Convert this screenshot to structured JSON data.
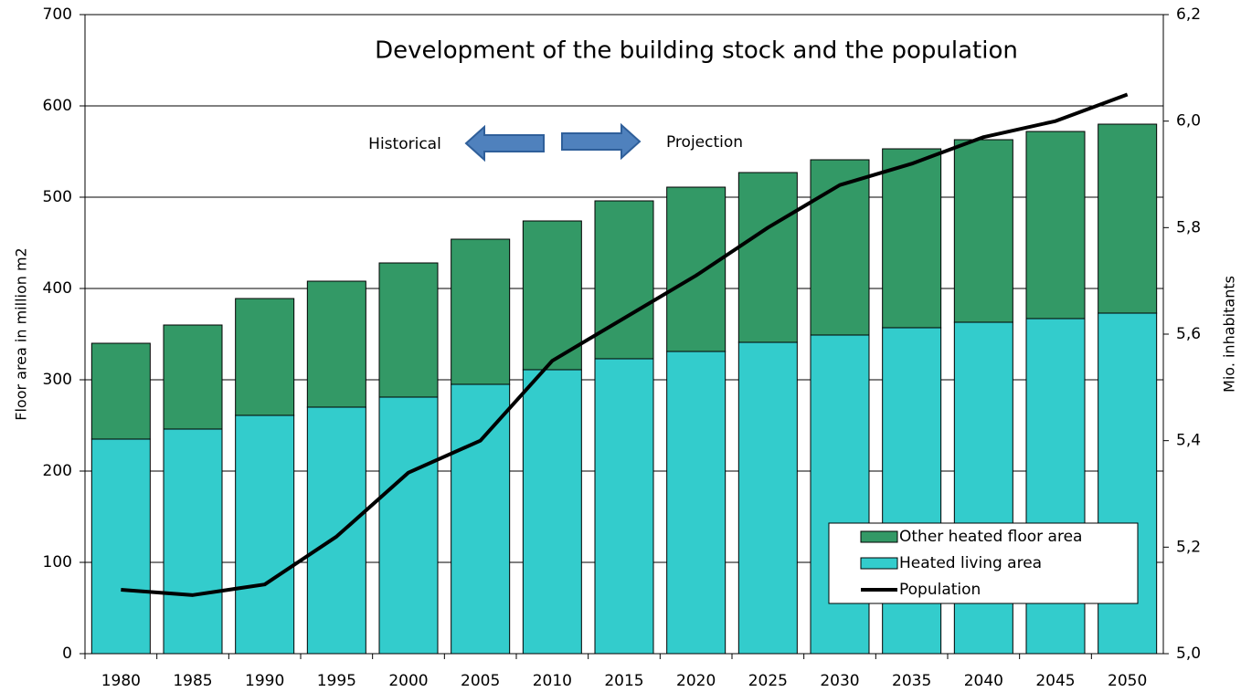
{
  "chart_data": {
    "type": "bar",
    "stacked": true,
    "title": "Development of the building stock and the population",
    "ylabel": "Floor area in million  m2",
    "y2label": "Mio. inhabitants",
    "annotations": [
      "Historical",
      "Projection"
    ],
    "categories": [
      "1980",
      "1985",
      "1990",
      "1995",
      "2000",
      "2005",
      "2010",
      "2015",
      "2020",
      "2025",
      "2030",
      "2035",
      "2040",
      "2045",
      "2050"
    ],
    "series": [
      {
        "name": "Heated living  area",
        "color": "#33cccc",
        "type": "bar",
        "values": [
          235,
          246,
          261,
          270,
          281,
          295,
          311,
          323,
          331,
          341,
          349,
          357,
          363,
          367,
          373
        ]
      },
      {
        "name": "Other heated floor area",
        "color": "#339966",
        "type": "bar",
        "values": [
          105,
          114,
          128,
          138,
          147,
          159,
          163,
          173,
          180,
          186,
          192,
          196,
          200,
          205,
          207
        ]
      },
      {
        "name": "Population",
        "color": "#000000",
        "type": "line",
        "axis": "y2",
        "values": [
          5.12,
          5.11,
          5.13,
          5.22,
          5.34,
          5.4,
          5.55,
          5.63,
          5.71,
          5.8,
          5.88,
          5.92,
          5.97,
          6.0,
          6.05
        ]
      }
    ],
    "ylim": [
      0,
      700
    ],
    "yticks": [
      0,
      100,
      200,
      300,
      400,
      500,
      600,
      700
    ],
    "y2lim": [
      5.0,
      6.2
    ],
    "y2ticks": [
      {
        "value": 5.0,
        "label": "5,0"
      },
      {
        "value": 5.2,
        "label": "5,2"
      },
      {
        "value": 5.4,
        "label": "5,4"
      },
      {
        "value": 5.6,
        "label": "5,6"
      },
      {
        "value": 5.8,
        "label": "5,8"
      },
      {
        "value": 6.0,
        "label": "6,0"
      },
      {
        "value": 6.2,
        "label": "6,2"
      }
    ],
    "grid": true,
    "legend": "lower right"
  }
}
